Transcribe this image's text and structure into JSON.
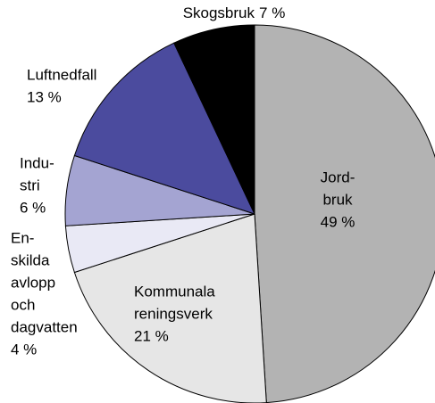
{
  "chart_data": {
    "type": "pie",
    "categories": [
      [
        "Jord-",
        "bruk"
      ],
      [
        "Kommunala",
        "reningsverk"
      ],
      [
        "En-",
        "skilda",
        "avlopp",
        "och",
        "dagvatten"
      ],
      [
        "Indu-",
        "stri"
      ],
      [
        "Luftnedfall"
      ],
      [
        "Skogsbruk"
      ]
    ],
    "values": [
      49,
      21,
      4,
      6,
      13,
      7
    ],
    "value_labels": [
      "49 %",
      "21 %",
      "4 %",
      "6 %",
      "13 %",
      "7 %"
    ],
    "colors": [
      "#b3b3b3",
      "#e6e6e6",
      "#e9e9f5",
      "#a4a4d2",
      "#4b4b9e",
      "#000000"
    ]
  }
}
